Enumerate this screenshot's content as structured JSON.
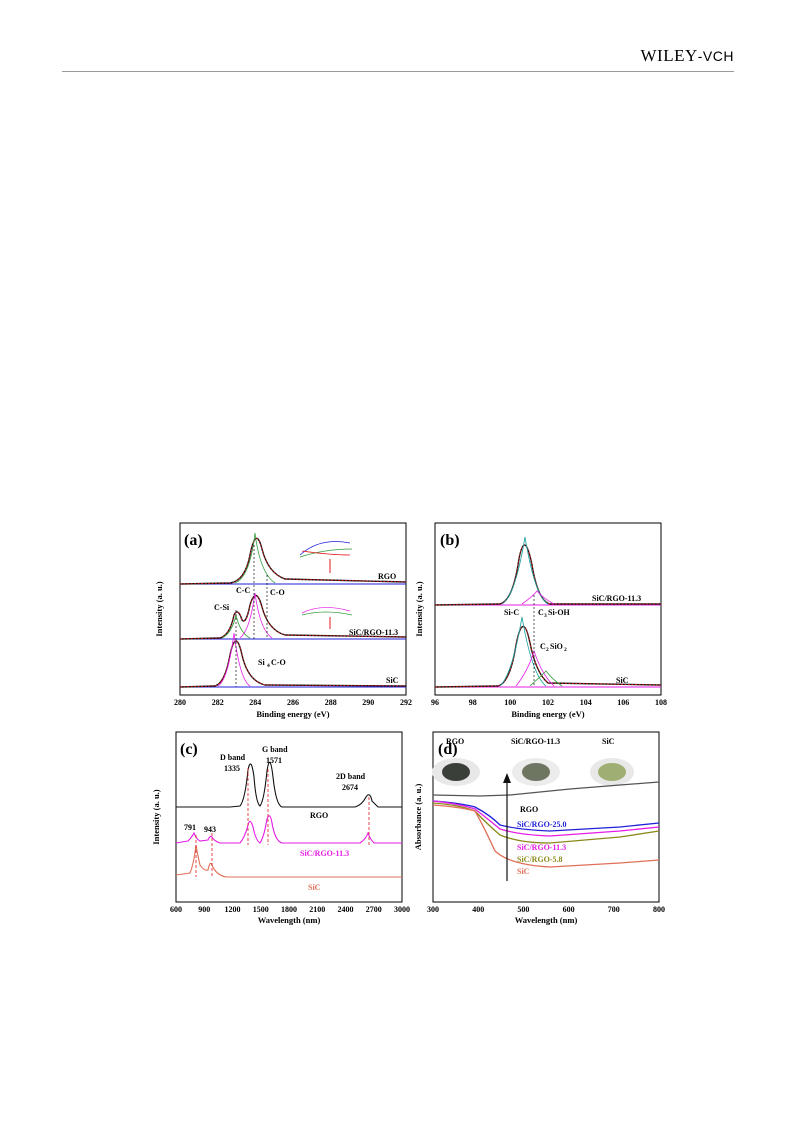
{
  "header": {
    "publisher_main": "WILEY",
    "publisher_suffix": "-VCH"
  },
  "figure": {
    "panels": [
      {
        "label": "(a)",
        "xlabel": "Binding energy (eV)",
        "ylabel": "Intensity (a. u.)",
        "xticks": [
          "280",
          "282",
          "284",
          "286",
          "288",
          "290",
          "292"
        ],
        "xlim": [
          280,
          292
        ],
        "traces": [
          "RGO",
          "SiC/RGO-11.3",
          "SiC"
        ],
        "annotations": [
          "C-C",
          "C-O",
          "C-Si",
          "Si",
          "4",
          "C-O"
        ]
      },
      {
        "label": "(b)",
        "xlabel": "Binding energy (eV)",
        "ylabel": "Intensity (a. u.)",
        "xticks": [
          "96",
          "98",
          "100",
          "102",
          "104",
          "106",
          "108"
        ],
        "xlim": [
          96,
          108
        ],
        "traces": [
          "SiC/RGO-11.3",
          "SiC"
        ],
        "annotations": [
          "Si-C",
          "C",
          "3",
          "Si-OH",
          "C",
          "2",
          "SiO",
          "2"
        ]
      },
      {
        "label": "(c)",
        "xlabel": "Wavelength (nm)",
        "ylabel": "Intensity (a. u.)",
        "xticks": [
          "600",
          "900",
          "1200",
          "1500",
          "1800",
          "2100",
          "2400",
          "2700",
          "3000"
        ],
        "xlim": [
          600,
          3000
        ],
        "traces": [
          "RGO",
          "SiC/RGO-11.3",
          "SiC"
        ],
        "annotations": [
          "D band",
          "1335",
          "G band",
          "1571",
          "2D band",
          "2674",
          "791",
          "943"
        ]
      },
      {
        "label": "(d)",
        "xlabel": "Wavelength (nm)",
        "ylabel": "Absorbance (a. u.)",
        "xticks": [
          "300",
          "400",
          "500",
          "600",
          "700",
          "800"
        ],
        "xlim": [
          300,
          800
        ],
        "traces": [
          "RGO",
          "SiC/RGO-25.0",
          "SiC/RGO-11.3",
          "SiC/RGO-5.8",
          "SiC"
        ],
        "photo_labels": [
          "RGO",
          "SiC/RGO-11.3",
          "SiC"
        ]
      }
    ],
    "colors": {
      "black": "#111111",
      "red": "#e0191b",
      "green": "#2f9a3a",
      "magenta": "#e61ce6",
      "blue": "#2020d8",
      "olive": "#8a8a1a",
      "salmon": "#e07058",
      "teal": "#1aa0a0"
    }
  }
}
